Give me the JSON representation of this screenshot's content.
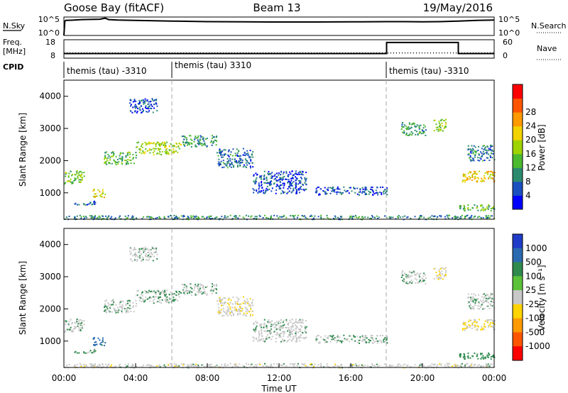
{
  "header": {
    "radar": "Goose Bay (fitACF)",
    "beam": "Beam 13",
    "date": "19/May/2016"
  },
  "noise_panel": {
    "left_label": "N.Sky",
    "right_label": "N.Search",
    "left_ticks": [
      "10^5",
      "10^0"
    ],
    "right_ticks": [
      "10^5",
      "10^0"
    ]
  },
  "freq_panel": {
    "left_label_1": "Freq.",
    "left_label_2": "[MHz]",
    "right_label": "Nave",
    "left_ticks": [
      "18",
      "8"
    ],
    "right_ticks": [
      "60",
      "0"
    ]
  },
  "cpid": {
    "label": "CPID",
    "segments": [
      {
        "start_hr": 0,
        "text": "themis (tau) -3310"
      },
      {
        "start_hr": 6,
        "text": "themis (tau) 3310"
      },
      {
        "start_hr": 18,
        "text": "themis (tau) -3310"
      }
    ]
  },
  "x_axis": {
    "label": "Time UT",
    "ticks": [
      "00:00",
      "04:00",
      "08:00",
      "12:00",
      "16:00",
      "20:00",
      "00:00"
    ],
    "range_hr": [
      0,
      24
    ]
  },
  "power_panel": {
    "ylabel": "Slant Range [km]",
    "yticks": [
      "1000",
      "2000",
      "3000",
      "4000"
    ],
    "cbar_label": "Power [dB]",
    "cbar_ticks": [
      "4",
      "8",
      "12",
      "16",
      "20",
      "24",
      "28"
    ],
    "cbar_colors": [
      "#0000ff",
      "#1a4fbf",
      "#2b8a6e",
      "#4cba2f",
      "#9fd300",
      "#f2d200",
      "#ff9a00",
      "#ff5500",
      "#ff0000"
    ]
  },
  "velocity_panel": {
    "ylabel": "Slant Range [km]",
    "yticks": [
      "1000",
      "2000",
      "3000",
      "4000"
    ],
    "cbar_label": "Velocity [m s⁻¹]",
    "cbar_ticks": [
      "1000",
      "500",
      "100",
      "25",
      "-25",
      "-100",
      "-500",
      "-1000"
    ],
    "cbar_colors": [
      "#1f3cc8",
      "#2a6ab0",
      "#2f8a4d",
      "#5cc239",
      "#c8c8c8",
      "#ffd400",
      "#ff9a00",
      "#ff5500",
      "#ff0000"
    ]
  },
  "chart_data": {
    "type": "heatmap",
    "x_unit": "hours UT",
    "y_unit": "km",
    "ylim": [
      180,
      4500
    ],
    "xlim": [
      0,
      24
    ],
    "dashed_markers_hr": [
      6,
      18
    ],
    "noise_panel_ylim_log10": [
      0,
      5
    ],
    "freq_panel_ylim": [
      8,
      18
    ],
    "nave_panel_ylim": [
      0,
      60
    ],
    "freq_segments": [
      {
        "x": [
          0,
          18
        ],
        "freq": 10.5
      },
      {
        "x": [
          18,
          22
        ],
        "freq": 16.5
      },
      {
        "x": [
          22,
          24
        ],
        "freq": 10.5
      }
    ],
    "nave_segments": [
      {
        "x": [
          0,
          24
        ],
        "nave": 17
      }
    ],
    "noise_series": {
      "x": [
        0,
        0.05,
        0.1,
        0.5,
        1,
        1.5,
        2,
        2.3,
        2.5,
        3,
        4,
        5,
        6,
        8,
        10,
        12,
        14,
        16,
        18,
        19,
        20,
        21,
        22,
        23,
        24
      ],
      "log10": [
        0,
        3.9,
        4.1,
        4.15,
        4.3,
        4.35,
        4.4,
        4.7,
        4.3,
        4.2,
        4.1,
        4.0,
        3.9,
        3.75,
        3.7,
        3.65,
        3.65,
        3.7,
        3.75,
        3.75,
        3.7,
        3.75,
        3.9,
        4.1,
        4.2
      ]
    },
    "echo_regions": [
      {
        "x": [
          0.0,
          1.1
        ],
        "range_km": [
          1300,
          1700
        ],
        "power_db": 16,
        "velocity": 20
      },
      {
        "x": [
          1.6,
          2.3
        ],
        "range_km": [
          880,
          1150
        ],
        "power_db": 20,
        "velocity": 120
      },
      {
        "x": [
          0.5,
          1.8
        ],
        "range_km": [
          640,
          760
        ],
        "power_db": 6,
        "velocity": 30
      },
      {
        "x": [
          2.2,
          4.0
        ],
        "range_km": [
          1900,
          2300
        ],
        "power_db": 14,
        "velocity": 20
      },
      {
        "x": [
          4.0,
          6.5
        ],
        "range_km": [
          2200,
          2600
        ],
        "power_db": 18,
        "velocity": 20
      },
      {
        "x": [
          6.5,
          8.5
        ],
        "range_km": [
          2450,
          2800
        ],
        "power_db": 10,
        "velocity": 10
      },
      {
        "x": [
          8.5,
          10.5
        ],
        "range_km": [
          1800,
          2400
        ],
        "power_db": 8,
        "velocity": -10
      },
      {
        "x": [
          10.5,
          13.5
        ],
        "range_km": [
          1000,
          1700
        ],
        "power_db": 6,
        "velocity": 5
      },
      {
        "x": [
          3.6,
          5.2
        ],
        "range_km": [
          3500,
          3950
        ],
        "power_db": 6,
        "velocity": 10
      },
      {
        "x": [
          14.0,
          18.0
        ],
        "range_km": [
          950,
          1200
        ],
        "power_db": 6,
        "velocity": 15
      },
      {
        "x": [
          18.8,
          20.2
        ],
        "range_km": [
          2800,
          3200
        ],
        "power_db": 12,
        "velocity": 20
      },
      {
        "x": [
          20.6,
          21.3
        ],
        "range_km": [
          2900,
          3300
        ],
        "power_db": 16,
        "velocity": -20
      },
      {
        "x": [
          22.2,
          24.0
        ],
        "range_km": [
          1350,
          1700
        ],
        "power_db": 22,
        "velocity": -30
      },
      {
        "x": [
          22.5,
          24.0
        ],
        "range_km": [
          2000,
          2500
        ],
        "power_db": 8,
        "velocity": 10
      },
      {
        "x": [
          22.0,
          24.0
        ],
        "range_km": [
          450,
          650
        ],
        "power_db": 14,
        "velocity": 60
      },
      {
        "x": [
          0.0,
          24.0
        ],
        "range_km": [
          190,
          320
        ],
        "power_db": 10,
        "velocity": 0
      }
    ]
  }
}
